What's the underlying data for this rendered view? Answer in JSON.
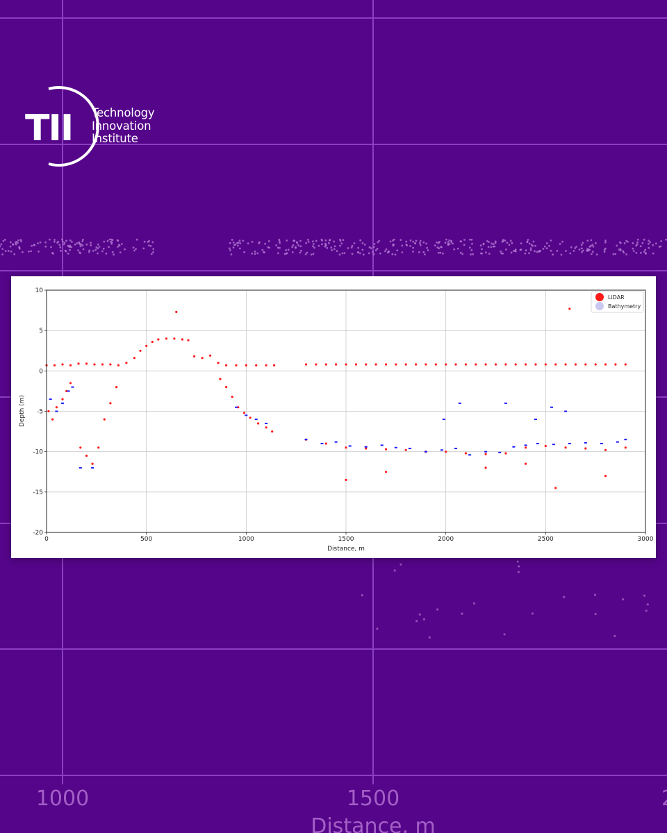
{
  "brand": {
    "logo_letters": "TII",
    "lines": [
      "Technology",
      "Innovation",
      "Institute"
    ]
  },
  "background": {
    "color": "#55058a",
    "grid_color": "#8a3fbf",
    "x_tick_labels": [
      "1000",
      "1500",
      "2"
    ],
    "xlabel": "Distance, m"
  },
  "chart_data": {
    "type": "scatter",
    "xlabel": "Distance, m",
    "ylabel": "Depth (m)",
    "xlim": [
      0,
      3000
    ],
    "ylim": [
      -20,
      10
    ],
    "xticks": [
      0,
      500,
      1000,
      1500,
      2000,
      2500,
      3000
    ],
    "yticks": [
      10,
      5,
      0,
      -5,
      -10,
      -15,
      -20
    ],
    "grid": true,
    "legend_position": "top-right",
    "series": [
      {
        "name": "LiDAR",
        "color": "#ff1a1a",
        "points": [
          [
            0,
            0.7
          ],
          [
            40,
            0.7
          ],
          [
            80,
            0.8
          ],
          [
            120,
            0.7
          ],
          [
            160,
            0.9
          ],
          [
            200,
            0.9
          ],
          [
            240,
            0.8
          ],
          [
            280,
            0.8
          ],
          [
            320,
            0.8
          ],
          [
            360,
            0.7
          ],
          [
            400,
            1.0
          ],
          [
            440,
            1.6
          ],
          [
            470,
            2.5
          ],
          [
            500,
            3.1
          ],
          [
            530,
            3.6
          ],
          [
            560,
            3.9
          ],
          [
            600,
            4.0
          ],
          [
            640,
            4.0
          ],
          [
            680,
            3.9
          ],
          [
            710,
            3.8
          ],
          [
            740,
            1.8
          ],
          [
            780,
            1.6
          ],
          [
            820,
            1.9
          ],
          [
            860,
            1.0
          ],
          [
            900,
            0.7
          ],
          [
            950,
            0.7
          ],
          [
            1000,
            0.7
          ],
          [
            1050,
            0.7
          ],
          [
            1100,
            0.7
          ],
          [
            1140,
            0.7
          ],
          [
            1300,
            0.8
          ],
          [
            1350,
            0.8
          ],
          [
            1400,
            0.8
          ],
          [
            1450,
            0.8
          ],
          [
            1500,
            0.8
          ],
          [
            1550,
            0.8
          ],
          [
            1600,
            0.8
          ],
          [
            1650,
            0.8
          ],
          [
            1700,
            0.8
          ],
          [
            1750,
            0.8
          ],
          [
            1800,
            0.8
          ],
          [
            1850,
            0.8
          ],
          [
            1900,
            0.8
          ],
          [
            1950,
            0.8
          ],
          [
            2000,
            0.8
          ],
          [
            2050,
            0.8
          ],
          [
            2100,
            0.8
          ],
          [
            2150,
            0.8
          ],
          [
            2200,
            0.8
          ],
          [
            2250,
            0.8
          ],
          [
            2300,
            0.8
          ],
          [
            2350,
            0.8
          ],
          [
            2400,
            0.8
          ],
          [
            2450,
            0.8
          ],
          [
            2500,
            0.8
          ],
          [
            2550,
            0.8
          ],
          [
            2600,
            0.8
          ],
          [
            2650,
            0.8
          ],
          [
            2700,
            0.8
          ],
          [
            2750,
            0.8
          ],
          [
            2800,
            0.8
          ],
          [
            2850,
            0.8
          ],
          [
            2900,
            0.8
          ],
          [
            10,
            -5.0
          ],
          [
            30,
            -6.0
          ],
          [
            50,
            -4.5
          ],
          [
            80,
            -3.5
          ],
          [
            100,
            -2.5
          ],
          [
            120,
            -1.5
          ],
          [
            170,
            -9.5
          ],
          [
            200,
            -10.5
          ],
          [
            230,
            -11.5
          ],
          [
            260,
            -9.5
          ],
          [
            290,
            -6.0
          ],
          [
            320,
            -4.0
          ],
          [
            350,
            -2.0
          ],
          [
            650,
            7.3
          ],
          [
            870,
            -1.0
          ],
          [
            900,
            -2.0
          ],
          [
            930,
            -3.2
          ],
          [
            960,
            -4.5
          ],
          [
            990,
            -5.2
          ],
          [
            1020,
            -5.8
          ],
          [
            1060,
            -6.5
          ],
          [
            1100,
            -7.0
          ],
          [
            1130,
            -7.5
          ],
          [
            1300,
            -8.5
          ],
          [
            1400,
            -9.0
          ],
          [
            1500,
            -9.5
          ],
          [
            1600,
            -9.6
          ],
          [
            1700,
            -9.7
          ],
          [
            1800,
            -9.8
          ],
          [
            1900,
            -10.0
          ],
          [
            2000,
            -10.0
          ],
          [
            2100,
            -10.2
          ],
          [
            2200,
            -10.3
          ],
          [
            2300,
            -10.2
          ],
          [
            2400,
            -9.5
          ],
          [
            2500,
            -9.3
          ],
          [
            2600,
            -9.5
          ],
          [
            2700,
            -9.6
          ],
          [
            2800,
            -9.8
          ],
          [
            2900,
            -9.5
          ],
          [
            1500,
            -13.5
          ],
          [
            1700,
            -12.5
          ],
          [
            2200,
            -12.0
          ],
          [
            2400,
            -11.5
          ],
          [
            2550,
            -14.5
          ],
          [
            2800,
            -13.0
          ],
          [
            2620,
            7.7
          ]
        ]
      },
      {
        "name": "Bathymetry",
        "color": "#1a1aff",
        "points": [
          [
            20,
            -3.5
          ],
          [
            50,
            -5.0
          ],
          [
            80,
            -4.0
          ],
          [
            110,
            -2.5
          ],
          [
            130,
            -2.0
          ],
          [
            170,
            -12.0
          ],
          [
            230,
            -12.0
          ],
          [
            950,
            -4.5
          ],
          [
            1000,
            -5.5
          ],
          [
            1050,
            -6.0
          ],
          [
            1100,
            -6.5
          ],
          [
            1300,
            -8.5
          ],
          [
            1380,
            -9.0
          ],
          [
            1450,
            -8.8
          ],
          [
            1520,
            -9.3
          ],
          [
            1600,
            -9.4
          ],
          [
            1680,
            -9.2
          ],
          [
            1750,
            -9.5
          ],
          [
            1820,
            -9.6
          ],
          [
            1900,
            -10.0
          ],
          [
            1980,
            -9.8
          ],
          [
            2050,
            -9.6
          ],
          [
            2120,
            -10.4
          ],
          [
            2200,
            -10.0
          ],
          [
            2270,
            -10.1
          ],
          [
            2340,
            -9.4
          ],
          [
            2400,
            -9.2
          ],
          [
            2460,
            -9.0
          ],
          [
            2540,
            -9.1
          ],
          [
            2620,
            -9.0
          ],
          [
            2700,
            -8.9
          ],
          [
            2780,
            -9.0
          ],
          [
            2860,
            -8.8
          ],
          [
            2900,
            -8.5
          ],
          [
            1990,
            -6.0
          ],
          [
            2070,
            -4.0
          ],
          [
            2300,
            -4.0
          ],
          [
            2450,
            -6.0
          ],
          [
            2530,
            -4.5
          ],
          [
            2600,
            -5.0
          ]
        ]
      }
    ]
  }
}
